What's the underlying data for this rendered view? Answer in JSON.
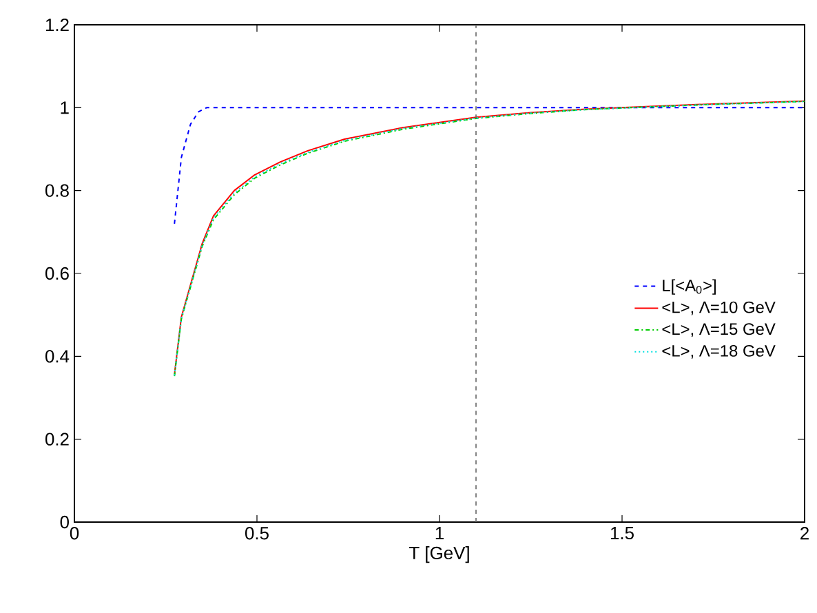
{
  "chart_data": {
    "type": "line",
    "xlabel": "T [GeV]",
    "xlim": [
      0,
      2
    ],
    "ylim": [
      0,
      1.2
    ],
    "xticks": [
      0,
      0.5,
      1,
      1.5,
      2
    ],
    "yticks": [
      0,
      0.2,
      0.4,
      0.6,
      0.8,
      1,
      1.2
    ],
    "legend": "right",
    "grid": false,
    "ref_lines": [
      {
        "axis": "x",
        "value": 1.1,
        "color": "#666666",
        "line_style": "dashed"
      }
    ],
    "series": [
      {
        "name": "L[<A$_{0}$>]",
        "color": "#0000ff",
        "line_style": "dashed",
        "x": [
          0.274,
          0.293,
          0.318,
          0.34,
          0.362,
          0.5,
          1.0,
          1.5,
          2.0
        ],
        "values": [
          0.72,
          0.88,
          0.96,
          0.99,
          1.0,
          1.0,
          1.0,
          1.0,
          1.0
        ]
      },
      {
        "name": "<L>, Λ=10 GeV",
        "color": "#ff0000",
        "line_style": "solid",
        "x": [
          0.274,
          0.293,
          0.35,
          0.381,
          0.438,
          0.494,
          0.564,
          0.639,
          0.74,
          0.9,
          1.1,
          1.25,
          1.392,
          1.52,
          1.75,
          2.0
        ],
        "values": [
          0.356,
          0.495,
          0.672,
          0.739,
          0.8,
          0.838,
          0.869,
          0.896,
          0.924,
          0.952,
          0.977,
          0.988,
          0.996,
          1.001,
          1.009,
          1.016
        ]
      },
      {
        "name": "<L>, Λ=15 GeV",
        "color": "#00cc00",
        "line_style": "dashdot",
        "x": [
          0.274,
          0.293,
          0.35,
          0.381,
          0.438,
          0.494,
          0.564,
          0.639,
          0.74,
          0.9,
          1.1,
          1.25,
          1.392,
          1.52,
          1.75,
          2.0
        ],
        "values": [
          0.352,
          0.49,
          0.665,
          0.73,
          0.79,
          0.83,
          0.862,
          0.89,
          0.919,
          0.948,
          0.974,
          0.986,
          0.995,
          1.0,
          1.008,
          1.015
        ]
      },
      {
        "name": "<L>, Λ=18 GeV",
        "color": "#00e0e0",
        "line_style": "dotted",
        "x": [
          0.274,
          0.293,
          0.35,
          0.381,
          0.438,
          0.494,
          0.564,
          0.639,
          0.74,
          0.9,
          1.1,
          1.25,
          1.392,
          1.52,
          1.75,
          2.0
        ],
        "values": [
          0.354,
          0.492,
          0.668,
          0.734,
          0.794,
          0.833,
          0.865,
          0.892,
          0.921,
          0.95,
          0.975,
          0.987,
          0.995,
          1.0,
          1.008,
          1.015
        ]
      }
    ]
  }
}
